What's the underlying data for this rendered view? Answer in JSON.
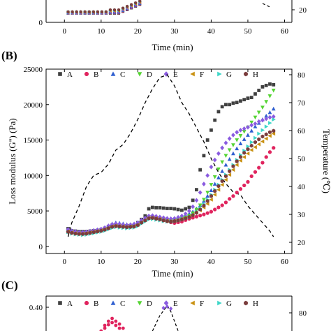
{
  "panels": {
    "top_partial": {
      "x_ticks": [
        "0",
        "10",
        "20",
        "30",
        "40",
        "50",
        "60"
      ],
      "y_left_ticks": [
        "0"
      ],
      "y_right_ticks": [
        "20"
      ],
      "xlabel": "Time (min)"
    },
    "b": {
      "label": "(B)"
    },
    "c_partial": {
      "label": "(C)",
      "y_left_ticks": [
        "0.40"
      ],
      "y_right_ticks": [
        "80"
      ]
    }
  },
  "legend": [
    "A",
    "B",
    "C",
    "D",
    "E",
    "F",
    "G",
    "H"
  ],
  "series_colors": [
    "#404040",
    "#e0245e",
    "#2f5fd0",
    "#55d433",
    "#8a5be0",
    "#c99112",
    "#3dd6c8",
    "#7a3d3d"
  ],
  "series_markers": [
    "square",
    "circle",
    "triangle-up",
    "triangle-down",
    "diamond",
    "triangle-left",
    "triangle-right",
    "hexagon"
  ],
  "chart_data": {
    "type": "scatter",
    "title": "",
    "xlabel": "Time (min)",
    "ylabel": "Loss modulus (G'') (Pa)",
    "y2label": "Temperature (℃)",
    "xlim": [
      -5,
      62
    ],
    "ylim": [
      -1000,
      25000
    ],
    "y2lim": [
      16,
      82
    ],
    "x_ticks": [
      0,
      10,
      20,
      30,
      40,
      50,
      60
    ],
    "y_ticks": [
      0,
      5000,
      10000,
      15000,
      20000,
      25000
    ],
    "y2_ticks": [
      20,
      30,
      40,
      50,
      60,
      70,
      80
    ],
    "x": [
      1,
      2,
      3,
      4,
      5,
      6,
      7,
      8,
      9,
      10,
      11,
      12,
      13,
      14,
      15,
      16,
      17,
      18,
      19,
      20,
      21,
      22,
      23,
      24,
      25,
      26,
      27,
      28,
      29,
      30,
      31,
      32,
      33,
      34,
      35,
      36,
      37,
      38,
      39,
      40,
      41,
      42,
      43,
      44,
      45,
      46,
      47,
      48,
      49,
      50,
      51,
      52,
      53,
      54,
      55,
      56,
      57
    ],
    "series": [
      {
        "name": "A",
        "values": [
          2500,
          2200,
          2150,
          2100,
          2100,
          2100,
          2150,
          2200,
          2250,
          2350,
          2550,
          2800,
          3000,
          3100,
          3000,
          2950,
          2900,
          2950,
          3000,
          3350,
          3800,
          4300,
          5300,
          5500,
          5450,
          5450,
          5400,
          5350,
          5350,
          5300,
          5200,
          5100,
          5300,
          5500,
          6500,
          8000,
          10800,
          12800,
          15000,
          16400,
          17800,
          19000,
          19700,
          20000,
          20000,
          20200,
          20300,
          20500,
          20700,
          20900,
          21000,
          21500,
          22000,
          22500,
          22700,
          22900,
          22800
        ]
      },
      {
        "name": "B",
        "values": [
          2200,
          2050,
          1950,
          1900,
          1900,
          1950,
          2000,
          2100,
          2150,
          2200,
          2350,
          2550,
          2750,
          2900,
          2850,
          2800,
          2750,
          2800,
          2850,
          3100,
          3450,
          3750,
          4100,
          4150,
          4100,
          4000,
          3800,
          3600,
          3400,
          3300,
          3400,
          3500,
          3700,
          3900,
          4050,
          4200,
          4350,
          4500,
          4700,
          4900,
          5200,
          5500,
          5800,
          6200,
          6700,
          7100,
          7600,
          8100,
          8600,
          9100,
          9900,
          10500,
          11100,
          11800,
          12600,
          13300,
          13900
        ]
      },
      {
        "name": "C",
        "values": [
          2300,
          2100,
          2000,
          1950,
          1900,
          1950,
          2050,
          2200,
          2300,
          2400,
          2600,
          2900,
          3200,
          3350,
          3300,
          3200,
          3100,
          3100,
          3200,
          3350,
          3650,
          3950,
          4200,
          4300,
          4200,
          4100,
          4000,
          3950,
          3900,
          3950,
          4100,
          4250,
          4400,
          4600,
          4900,
          5300,
          5800,
          6400,
          7100,
          7900,
          8800,
          9700,
          10600,
          11500,
          12300,
          13100,
          13800,
          14500,
          15100,
          15700,
          16300,
          16900,
          17400,
          17900,
          18400,
          18900,
          19400
        ]
      },
      {
        "name": "D",
        "values": [
          2200,
          2000,
          1900,
          1850,
          1850,
          1900,
          2000,
          2100,
          2200,
          2300,
          2500,
          2700,
          2900,
          3000,
          2950,
          2900,
          2850,
          2900,
          2950,
          3150,
          3500,
          3800,
          4100,
          4150,
          4050,
          3950,
          3800,
          3700,
          3650,
          3700,
          3800,
          3950,
          4100,
          4350,
          4700,
          5200,
          5800,
          6600,
          7600,
          8700,
          9800,
          10900,
          11900,
          12800,
          13600,
          14300,
          15000,
          15600,
          16200,
          16800,
          17500,
          18200,
          18900,
          19600,
          20400,
          21200,
          22000
        ]
      },
      {
        "name": "E",
        "values": [
          2400,
          2200,
          2100,
          2000,
          2000,
          2050,
          2150,
          2250,
          2350,
          2450,
          2650,
          2900,
          3100,
          3200,
          3150,
          3050,
          3000,
          3050,
          3150,
          3350,
          3700,
          4000,
          4300,
          4350,
          4250,
          4150,
          4050,
          3950,
          3900,
          3950,
          4100,
          4300,
          4600,
          5000,
          5600,
          6500,
          7600,
          8800,
          10000,
          11200,
          12200,
          13100,
          13900,
          14600,
          15200,
          15700,
          16100,
          16400,
          16600,
          16800,
          17100,
          17300,
          17600,
          17800,
          18000,
          18200,
          18300
        ]
      },
      {
        "name": "F",
        "values": [
          2100,
          1950,
          1850,
          1800,
          1800,
          1850,
          1950,
          2050,
          2150,
          2250,
          2400,
          2600,
          2800,
          2900,
          2850,
          2800,
          2750,
          2800,
          2850,
          3050,
          3400,
          3700,
          4000,
          4050,
          3950,
          3850,
          3700,
          3600,
          3550,
          3600,
          3700,
          3850,
          4000,
          4200,
          4450,
          4750,
          5100,
          5500,
          6000,
          6600,
          7300,
          8000,
          8700,
          9400,
          10100,
          10800,
          11500,
          12100,
          12600,
          13100,
          13600,
          14000,
          14400,
          14800,
          15200,
          15600,
          15900
        ]
      },
      {
        "name": "G",
        "values": [
          2000,
          1800,
          1700,
          1650,
          1600,
          1650,
          1750,
          1850,
          1950,
          2050,
          2200,
          2400,
          2600,
          2700,
          2650,
          2600,
          2550,
          2600,
          2650,
          2850,
          3200,
          3500,
          3800,
          3850,
          3750,
          3650,
          3550,
          3500,
          3500,
          3550,
          3650,
          3800,
          3950,
          4150,
          4450,
          4850,
          5350,
          5950,
          6600,
          7300,
          8000,
          8700,
          9400,
          10100,
          10800,
          11500,
          12200,
          12900,
          13500,
          14100,
          14700,
          15300,
          15900,
          16400,
          16900,
          17400,
          17900
        ]
      },
      {
        "name": "H",
        "values": [
          2050,
          1900,
          1800,
          1750,
          1750,
          1800,
          1900,
          2000,
          2100,
          2200,
          2350,
          2550,
          2750,
          2850,
          2800,
          2750,
          2700,
          2750,
          2800,
          3000,
          3350,
          3650,
          3950,
          4000,
          3900,
          3800,
          3650,
          3550,
          3500,
          3550,
          3650,
          3800,
          3950,
          4150,
          4400,
          4750,
          5200,
          5750,
          6400,
          7100,
          7800,
          8500,
          9200,
          9900,
          10600,
          11300,
          12000,
          12600,
          13200,
          13700,
          14200,
          14700,
          15100,
          15500,
          15800,
          16100,
          16300
        ]
      }
    ],
    "temperature": {
      "name": "",
      "style": "dashed",
      "x": [
        1,
        2,
        4,
        6,
        8,
        10,
        12,
        14,
        16,
        18,
        20,
        22,
        24,
        26,
        28,
        30,
        32,
        34,
        36,
        38,
        40,
        42,
        44,
        46,
        48,
        50,
        52,
        54,
        56,
        57
      ],
      "values": [
        22,
        27,
        33,
        40,
        44,
        45,
        48,
        53,
        55,
        59,
        64,
        70,
        75,
        79,
        80,
        76,
        70,
        66,
        61,
        56,
        50,
        45,
        41,
        38,
        37,
        33,
        30,
        27,
        24,
        22
      ]
    },
    "grid": false,
    "legend_position": "top"
  }
}
